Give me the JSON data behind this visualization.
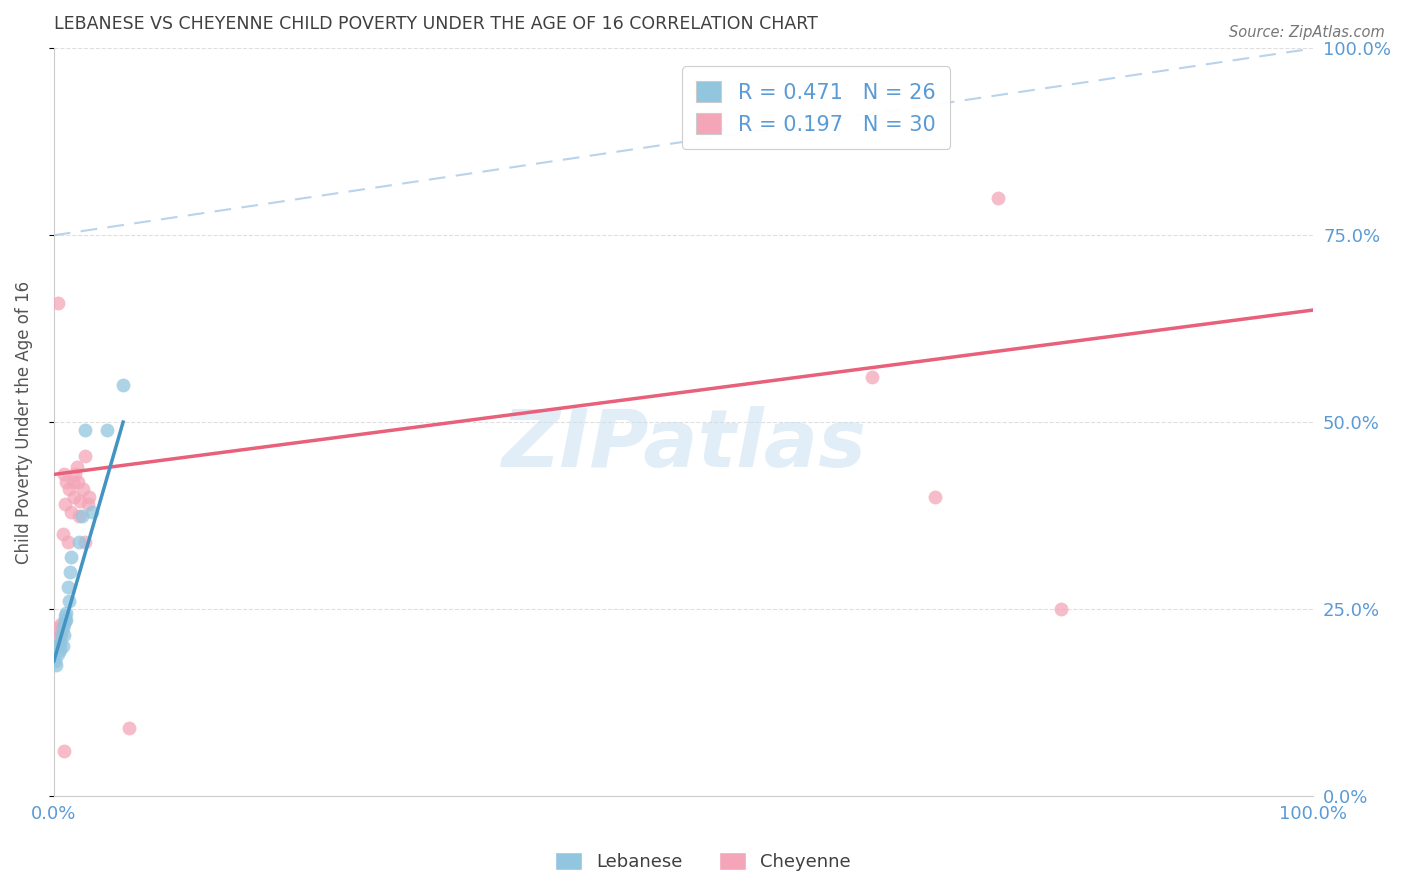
{
  "title": "LEBANESE VS CHEYENNE CHILD POVERTY UNDER THE AGE OF 16 CORRELATION CHART",
  "source": "Source: ZipAtlas.com",
  "ylabel": "Child Poverty Under the Age of 16",
  "r_lebanese": 0.471,
  "n_lebanese": 26,
  "r_cheyenne": 0.197,
  "n_cheyenne": 30,
  "lebanese_color": "#92c5de",
  "cheyenne_color": "#f4a6b8",
  "lebanese_line_color": "#4393c3",
  "cheyenne_line_color": "#e8607a",
  "diagonal_color": "#a8c8e8",
  "watermark": "ZIPatlas",
  "lebanese_x": [
    0.001,
    0.002,
    0.003,
    0.003,
    0.004,
    0.005,
    0.005,
    0.006,
    0.007,
    0.007,
    0.008,
    0.008,
    0.009,
    0.009,
    0.01,
    0.01,
    0.011,
    0.012,
    0.013,
    0.014,
    0.02,
    0.022,
    0.025,
    0.03,
    0.042,
    0.055
  ],
  "lebanese_y": [
    0.18,
    0.175,
    0.19,
    0.2,
    0.2,
    0.195,
    0.205,
    0.215,
    0.2,
    0.225,
    0.215,
    0.23,
    0.235,
    0.24,
    0.235,
    0.245,
    0.28,
    0.26,
    0.3,
    0.32,
    0.34,
    0.375,
    0.49,
    0.38,
    0.49,
    0.55
  ],
  "cheyenne_x": [
    0.002,
    0.004,
    0.005,
    0.006,
    0.007,
    0.008,
    0.009,
    0.01,
    0.011,
    0.012,
    0.014,
    0.015,
    0.016,
    0.017,
    0.018,
    0.019,
    0.02,
    0.021,
    0.023,
    0.025,
    0.025,
    0.027,
    0.028,
    0.003,
    0.008,
    0.06,
    0.65,
    0.7,
    0.75,
    0.8
  ],
  "cheyenne_y": [
    0.225,
    0.21,
    0.22,
    0.23,
    0.35,
    0.43,
    0.39,
    0.42,
    0.34,
    0.41,
    0.38,
    0.42,
    0.4,
    0.43,
    0.44,
    0.42,
    0.375,
    0.395,
    0.41,
    0.34,
    0.455,
    0.39,
    0.4,
    0.66,
    0.06,
    0.09,
    0.56,
    0.4,
    0.8,
    0.25
  ],
  "lebanese_line": [
    0.0,
    0.055,
    0.18,
    0.5
  ],
  "cheyenne_line": [
    0.0,
    1.0,
    0.43,
    0.65
  ],
  "diagonal_line": [
    0.0,
    1.0,
    0.75,
    1.0
  ],
  "xlim": [
    0.0,
    1.0
  ],
  "ylim": [
    0.0,
    1.0
  ],
  "yticks": [
    0.0,
    0.25,
    0.5,
    0.75,
    1.0
  ],
  "ytick_labels_right": [
    "0.0%",
    "25.0%",
    "50.0%",
    "75.0%",
    "100.0%"
  ],
  "xticks": [
    0.0,
    0.25,
    0.5,
    0.75,
    1.0
  ],
  "xtick_labels": [
    "0.0%",
    "",
    "",
    "",
    "100.0%"
  ],
  "background_color": "#ffffff",
  "grid_color": "#d8d8d8",
  "title_color": "#404040",
  "axis_label_color": "#5b9bd5",
  "marker_size": 100
}
